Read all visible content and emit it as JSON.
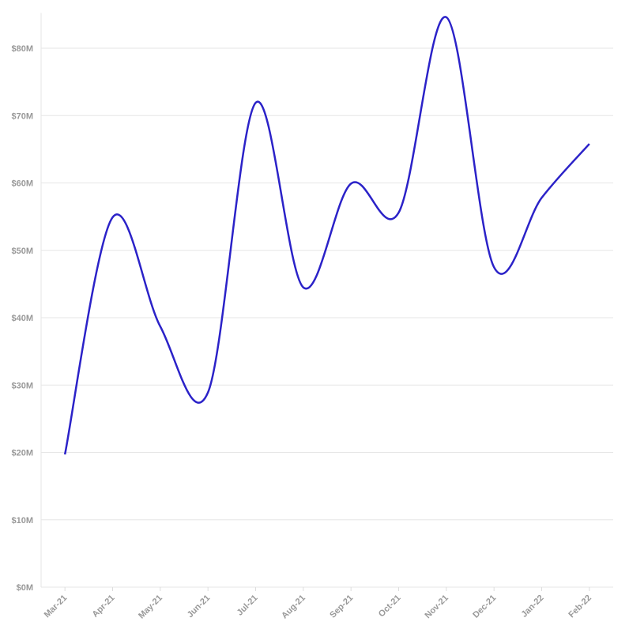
{
  "chart_data": {
    "type": "line",
    "categories": [
      "Mar-21",
      "Apr-21",
      "May-21",
      "Jun-21",
      "Jul-21",
      "Aug-21",
      "Sep-21",
      "Oct-21",
      "Nov-21",
      "Dec-21",
      "Jan-22",
      "Feb-22"
    ],
    "series": [
      {
        "color": "#2b22c8",
        "values": [
          19700000,
          54900000,
          38700000,
          28900000,
          71900000,
          44500000,
          59900000,
          55600000,
          84600000,
          47500000,
          57800000,
          65800000
        ]
      }
    ],
    "ylim": [
      0,
      85000000
    ],
    "yticks": [
      {
        "value": 0,
        "label": "$0M"
      },
      {
        "value": 10000000,
        "label": "$10M"
      },
      {
        "value": 20000000,
        "label": "$20M"
      },
      {
        "value": 30000000,
        "label": "$30M"
      },
      {
        "value": 40000000,
        "label": "$40M"
      },
      {
        "value": 50000000,
        "label": "$50M"
      },
      {
        "value": 60000000,
        "label": "$60M"
      },
      {
        "value": 70000000,
        "label": "$70M"
      },
      {
        "value": 80000000,
        "label": "$80M"
      }
    ],
    "grid": true
  }
}
